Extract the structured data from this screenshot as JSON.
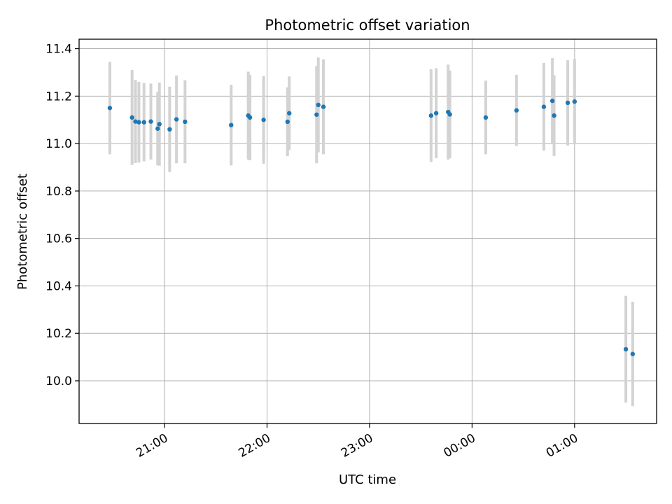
{
  "chart_data": {
    "type": "scatter",
    "title": "Photometric offset variation",
    "xlabel": "UTC time",
    "ylabel": "Photometric offset",
    "x_ticks": [
      "21:00",
      "22:00",
      "23:00",
      "00:00",
      "01:00"
    ],
    "y_ticks": [
      "10.0",
      "10.2",
      "10.4",
      "10.6",
      "10.8",
      "11.0",
      "11.2",
      "11.4"
    ],
    "xlim": [
      "20:10",
      "01:48"
    ],
    "ylim": [
      9.82,
      11.44
    ],
    "grid": true,
    "marker_color": "#1f77b4",
    "errorbar_color": "#d3d3d3",
    "points": [
      {
        "t": "20:28",
        "y": 11.15,
        "err": 0.195
      },
      {
        "t": "20:41",
        "y": 11.11,
        "err": 0.2
      },
      {
        "t": "20:43",
        "y": 11.093,
        "err": 0.175
      },
      {
        "t": "20:45",
        "y": 11.09,
        "err": 0.17
      },
      {
        "t": "20:48",
        "y": 11.09,
        "err": 0.165
      },
      {
        "t": "20:52",
        "y": 11.093,
        "err": 0.16
      },
      {
        "t": "20:56",
        "y": 11.063,
        "err": 0.155
      },
      {
        "t": "20:57",
        "y": 11.082,
        "err": 0.175
      },
      {
        "t": "21:03",
        "y": 11.06,
        "err": 0.18
      },
      {
        "t": "21:07",
        "y": 11.102,
        "err": 0.185
      },
      {
        "t": "21:12",
        "y": 11.092,
        "err": 0.175
      },
      {
        "t": "21:39",
        "y": 11.078,
        "err": 0.17
      },
      {
        "t": "21:49",
        "y": 11.118,
        "err": 0.185
      },
      {
        "t": "21:50",
        "y": 11.11,
        "err": 0.18
      },
      {
        "t": "21:58",
        "y": 11.1,
        "err": 0.185
      },
      {
        "t": "22:12",
        "y": 11.092,
        "err": 0.145
      },
      {
        "t": "22:13",
        "y": 11.128,
        "err": 0.155
      },
      {
        "t": "22:29",
        "y": 11.122,
        "err": 0.205
      },
      {
        "t": "22:30",
        "y": 11.163,
        "err": 0.2
      },
      {
        "t": "22:33",
        "y": 11.155,
        "err": 0.2
      },
      {
        "t": "23:36",
        "y": 11.118,
        "err": 0.195
      },
      {
        "t": "23:39",
        "y": 11.128,
        "err": 0.19
      },
      {
        "t": "23:46",
        "y": 11.133,
        "err": 0.2
      },
      {
        "t": "23:47",
        "y": 11.123,
        "err": 0.185
      },
      {
        "t": "00:08",
        "y": 11.11,
        "err": 0.155
      },
      {
        "t": "00:26",
        "y": 11.14,
        "err": 0.15
      },
      {
        "t": "00:42",
        "y": 11.155,
        "err": 0.185
      },
      {
        "t": "00:47",
        "y": 11.18,
        "err": 0.18
      },
      {
        "t": "00:48",
        "y": 11.118,
        "err": 0.17
      },
      {
        "t": "00:56",
        "y": 11.172,
        "err": 0.18
      },
      {
        "t": "01:00",
        "y": 11.177,
        "err": 0.18
      },
      {
        "t": "01:30",
        "y": 10.133,
        "err": 0.225
      },
      {
        "t": "01:34",
        "y": 10.113,
        "err": 0.22
      }
    ]
  }
}
